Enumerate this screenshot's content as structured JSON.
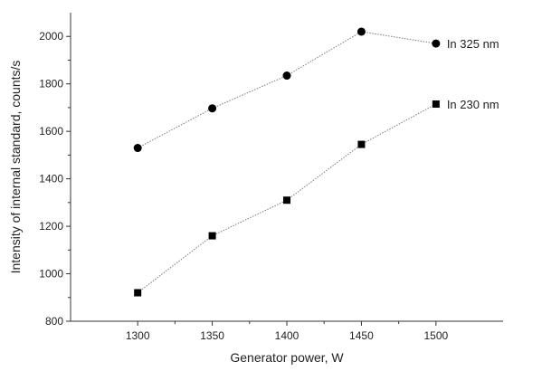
{
  "chart_data": {
    "type": "line",
    "title": "",
    "xlabel": "Generator power, W",
    "ylabel": "Intensity of internal standard, counts/s",
    "x": [
      1300,
      1350,
      1400,
      1450,
      1500
    ],
    "xlim": [
      1255,
      1545
    ],
    "ylim": [
      800,
      2100
    ],
    "xticks": [
      1300,
      1350,
      1400,
      1450,
      1500
    ],
    "yticks": [
      800,
      1000,
      1200,
      1400,
      1600,
      1800,
      2000
    ],
    "grid": false,
    "series": [
      {
        "name": "In 325 nm",
        "marker": "circle",
        "values": [
          1530,
          1697,
          1835,
          2020,
          1970
        ]
      },
      {
        "name": "In 230 nm",
        "marker": "square",
        "values": [
          920,
          1160,
          1310,
          1545,
          1715
        ]
      }
    ],
    "colors": {
      "marker": "#000000",
      "line": "#7a7a7a",
      "axis": "#333333"
    }
  }
}
